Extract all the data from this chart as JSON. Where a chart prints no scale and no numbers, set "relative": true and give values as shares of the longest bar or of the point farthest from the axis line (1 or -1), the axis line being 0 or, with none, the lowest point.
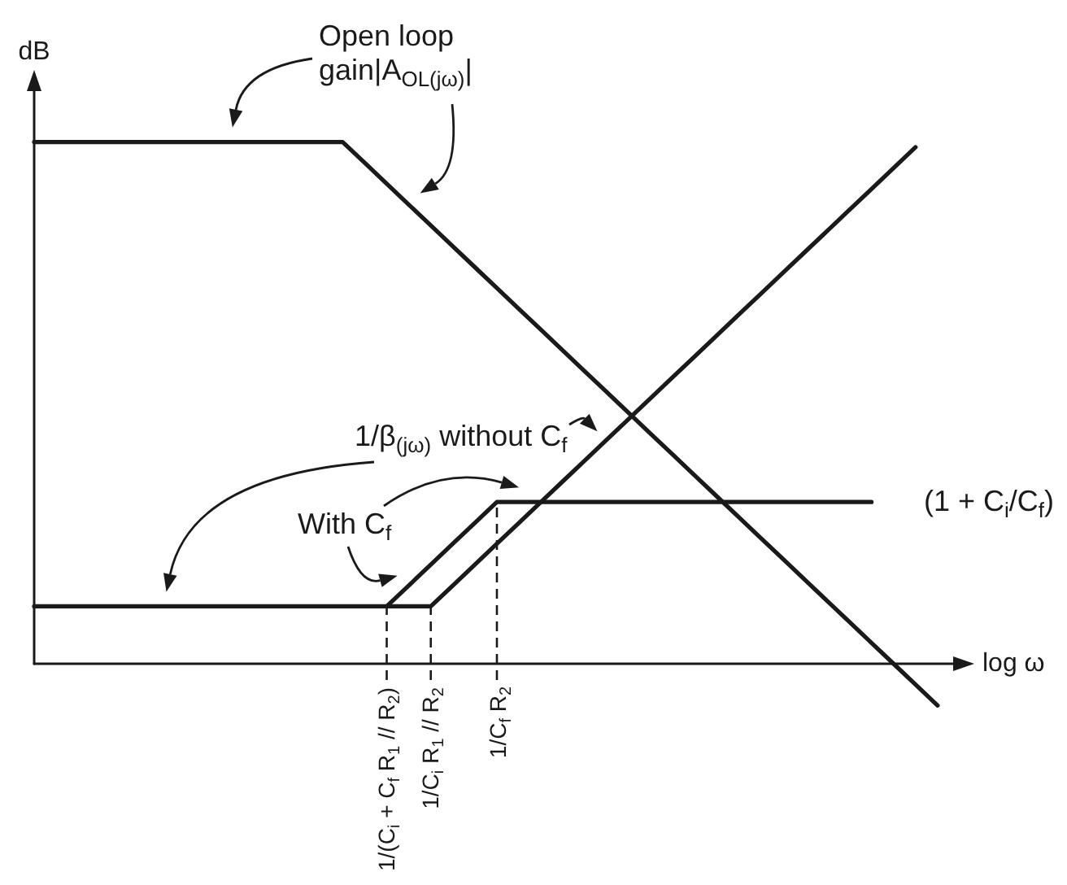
{
  "chart_data": {
    "type": "line",
    "relative": true,
    "xlabel": "log ω",
    "ylabel": "dB",
    "marker": "none",
    "categories": [
      null,
      null,
      null,
      null,
      null,
      null,
      null,
      null,
      null,
      null,
      null,
      null,
      null,
      null,
      null,
      null,
      "1/(C$_{i}$ + C$_{f}$ R$_{1}$ // R$_{2}$)",
      null,
      "1/C$_{i}$ R$_{1}$ // R$_{2}$",
      null,
      null,
      "1/C$_{f}$ R$_{2}$",
      null,
      null,
      null,
      null,
      null,
      null,
      null,
      null,
      null,
      null,
      null,
      null,
      null,
      null,
      null,
      null,
      null,
      null,
      null,
      null,
      null
    ],
    "series": [
      {
        "name": "Open loop gain|A$_{OL(jω)}$|",
        "color": "#1a1a1a",
        "values": [
          1,
          1,
          1,
          1,
          1,
          1,
          1,
          1,
          1,
          1,
          1,
          1,
          1,
          1,
          1,
          0.96,
          0.92,
          0.88,
          0.84,
          0.8,
          0.76,
          0.72,
          0.68,
          0.64,
          0.6,
          0.56,
          0.52,
          0.48,
          0.44,
          0.4,
          0.36,
          0.32,
          0.28,
          0.24,
          0.2,
          0.16,
          0.12,
          0.08,
          0.04,
          0,
          -0.04,
          -0.08,
          null
        ]
      },
      {
        "name": "1/β$_{(jω)}$ without C$_{f}$",
        "color": "#1a1a1a",
        "values": [
          0.11,
          0.11,
          0.11,
          0.11,
          0.11,
          0.11,
          0.11,
          0.11,
          0.11,
          0.11,
          0.11,
          0.11,
          0.11,
          0.11,
          0.11,
          0.11,
          0.11,
          0.11,
          0.11,
          0.15,
          0.19,
          0.23,
          0.27,
          0.31,
          0.35,
          0.39,
          0.43,
          0.47,
          0.51,
          0.55,
          0.59,
          0.63,
          0.67,
          0.71,
          0.75,
          0.79,
          0.83,
          0.87,
          0.91,
          0.95,
          0.99,
          null,
          null
        ]
      },
      {
        "name": "With C$_{f}$",
        "color": "#1a1a1a",
        "values": [
          null,
          null,
          null,
          null,
          null,
          null,
          null,
          null,
          null,
          null,
          null,
          null,
          null,
          null,
          null,
          null,
          0.11,
          0.15,
          0.19,
          0.23,
          0.27,
          0.31,
          0.31,
          0.31,
          0.31,
          0.31,
          0.31,
          0.31,
          0.31,
          0.31,
          0.31,
          0.31,
          0.31,
          0.31,
          0.31,
          0.31,
          0.31,
          0.31,
          0.31,
          null,
          null,
          null,
          null
        ]
      }
    ],
    "ref_lines": [
      {
        "axis": "x",
        "value": "1/(C$_{i}$ + C$_{f}$ R$_{1}$ // R$_{2}$)",
        "line_style": "dashed"
      },
      {
        "axis": "x",
        "value": "1/C$_{i}$ R$_{1}$ // R$_{2}$",
        "line_style": "dashed"
      },
      {
        "axis": "x",
        "value": "1/C$_{f}$ R$_{2}$",
        "line_style": "dashed"
      }
    ],
    "annotations": [
      "(1 + C$_{i}$/C$_{f}$)"
    ]
  }
}
